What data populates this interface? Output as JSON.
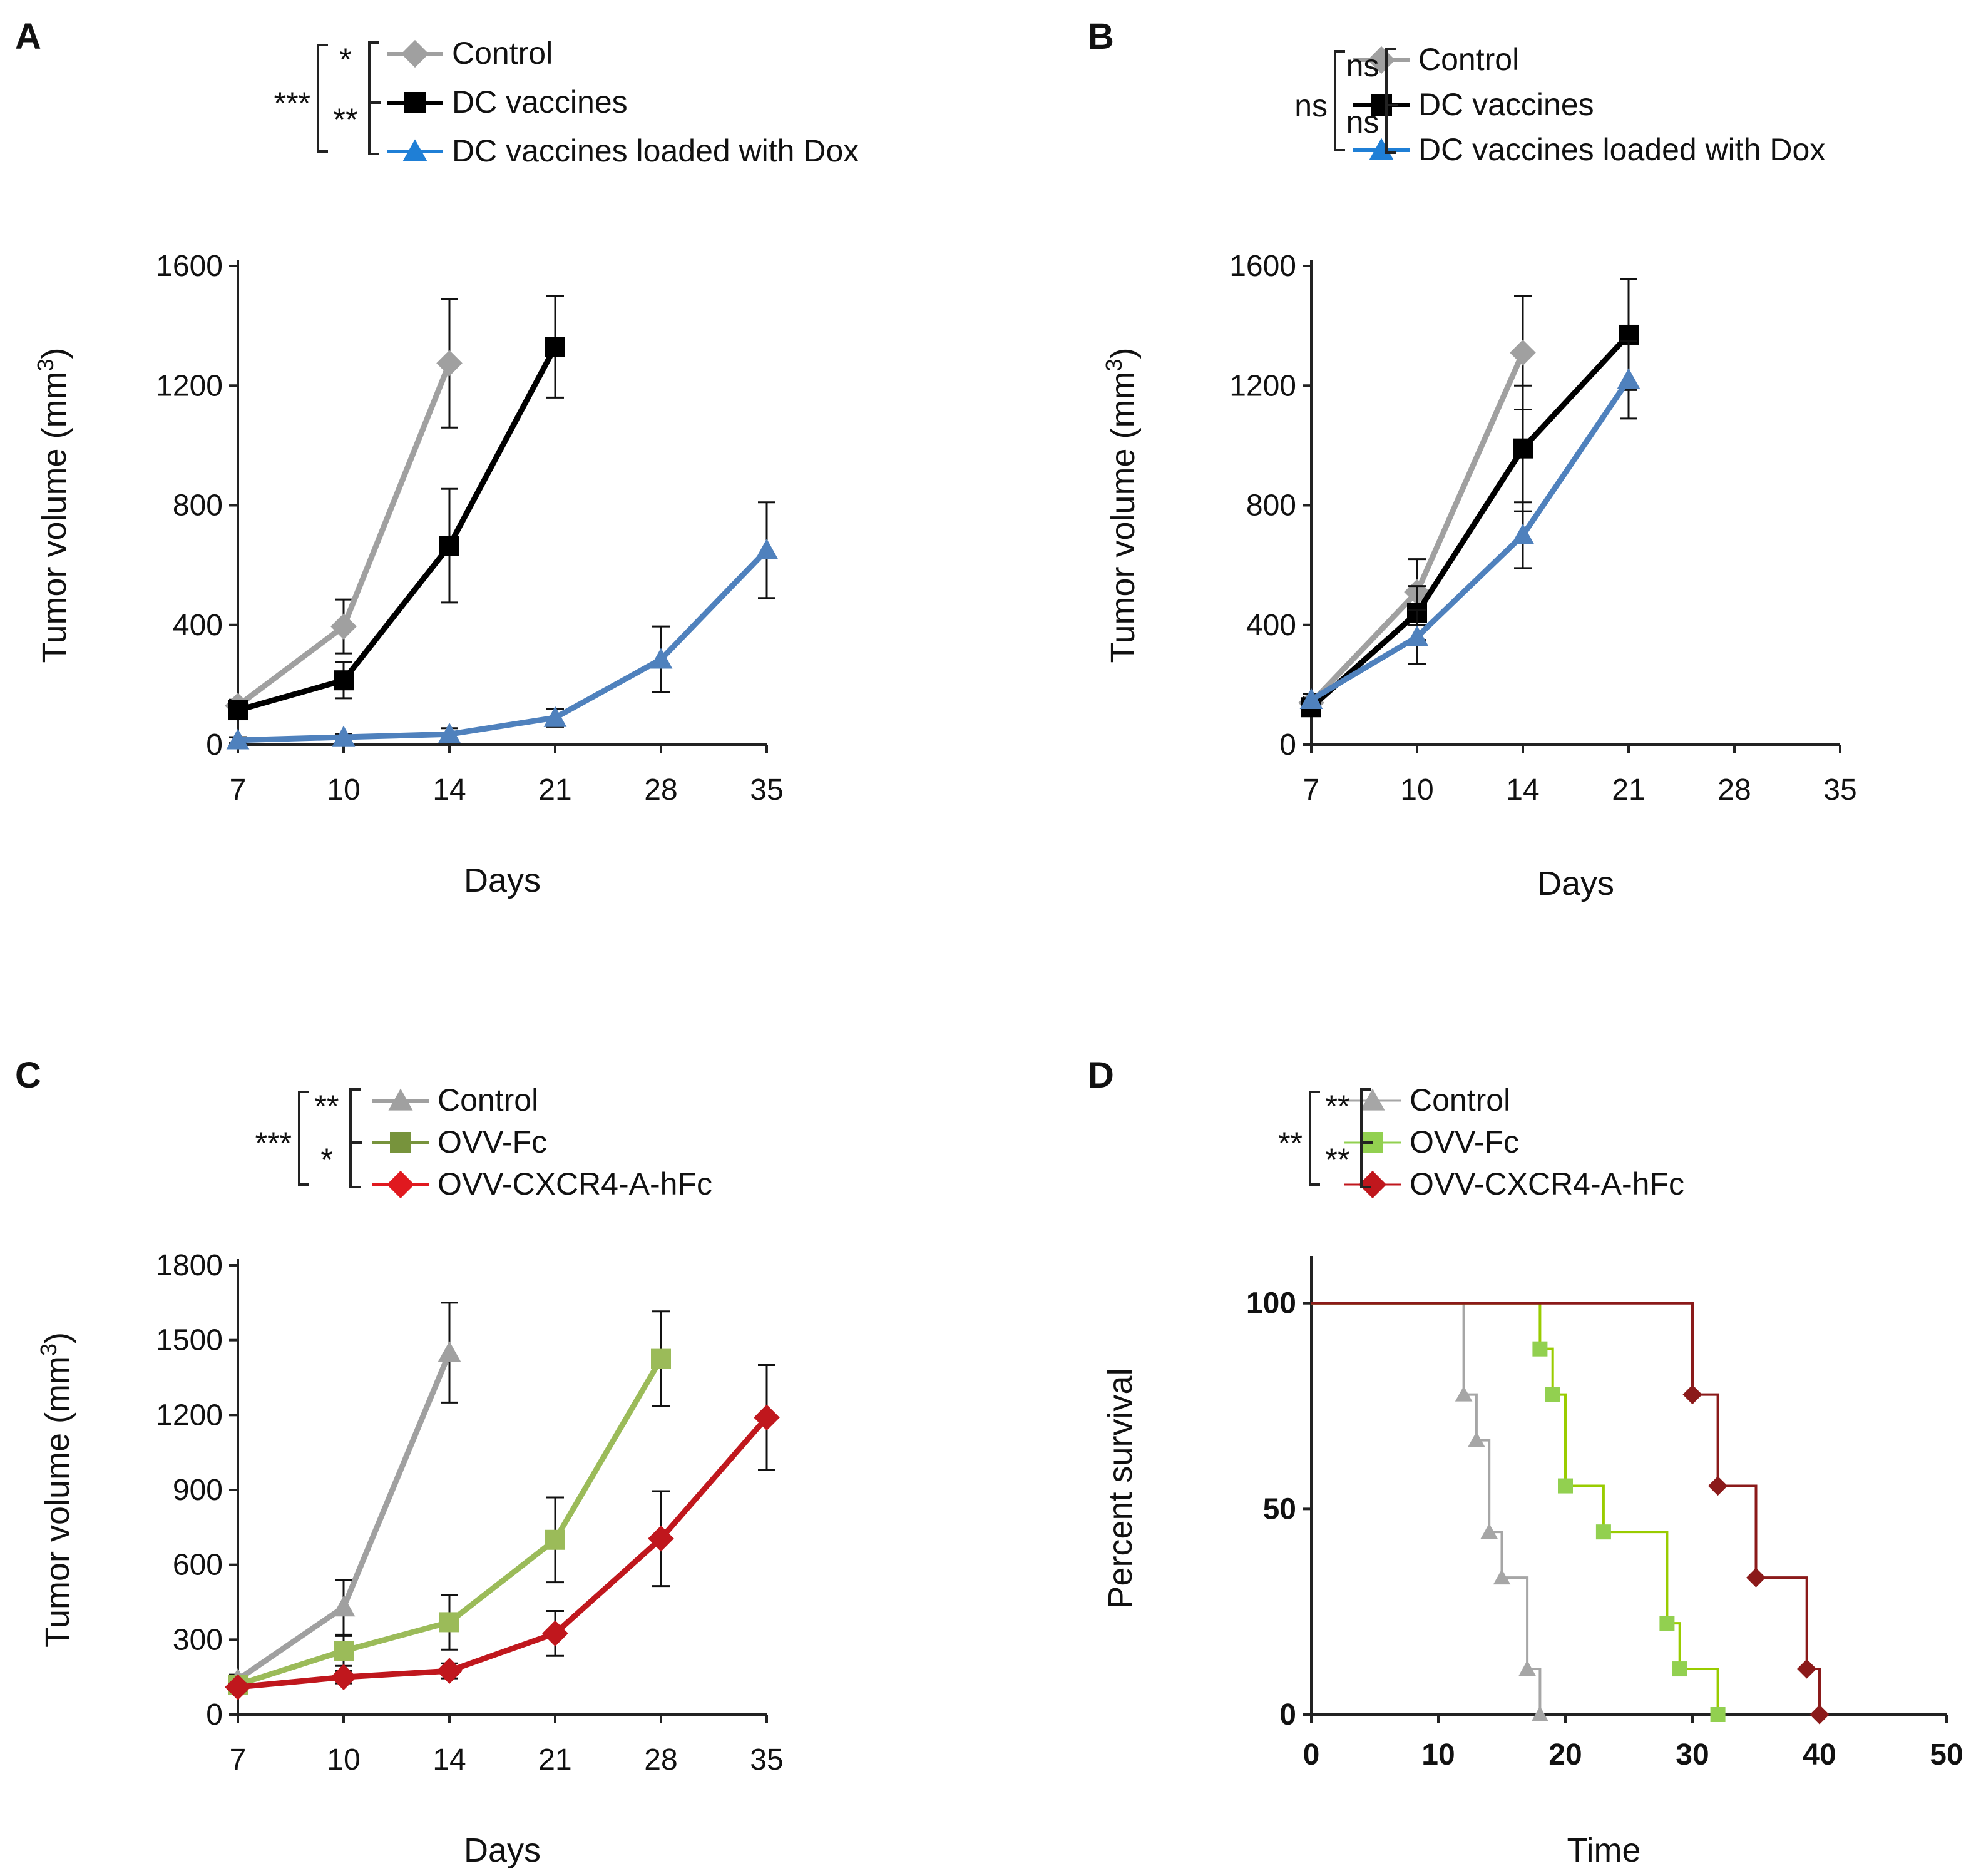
{
  "figure": {
    "panels": [
      "A",
      "B",
      "C",
      "D"
    ]
  },
  "chart_data": [
    {
      "panel": "A",
      "type": "line",
      "xlabel": "Days",
      "ylabel": "Tumor volume (mm3)",
      "ylabel_main": "Tumor volume (mm",
      "ylabel_sup": "3",
      "ylabel_close": ")",
      "categories": [
        "7",
        "10",
        "14",
        "21",
        "28",
        "35"
      ],
      "ylim": [
        0,
        1600
      ],
      "yticks": [
        "0",
        "400",
        "800",
        "1200",
        "1600"
      ],
      "yticks_values": [
        0,
        400,
        800,
        1200,
        1600
      ],
      "series": [
        {
          "name": "Control",
          "marker": "diamond",
          "color": "#a0a0a0",
          "values": [
            130,
            395,
            1275,
            null,
            null,
            null
          ],
          "errors": [
            20,
            90,
            215,
            null,
            null,
            null
          ]
        },
        {
          "name": "DC vaccines",
          "marker": "square",
          "color": "#000000",
          "values": [
            115,
            215,
            665,
            1330,
            null,
            null
          ],
          "errors": [
            20,
            60,
            190,
            170,
            null,
            null
          ]
        },
        {
          "name": "DC vaccines loaded with Dox",
          "marker": "triangle",
          "color": "#4f81bd",
          "legend_color": "#1f7fd6",
          "values": [
            15,
            25,
            35,
            90,
            285,
            650
          ],
          "errors": [
            10,
            10,
            20,
            30,
            110,
            160
          ]
        }
      ],
      "significance": {
        "outer": "***",
        "inner": [
          "*",
          "**"
        ]
      }
    },
    {
      "panel": "B",
      "type": "line",
      "xlabel": "Days",
      "ylabel": "Tumor volume (mm3)",
      "ylabel_main": "Tumor volume (mm",
      "ylabel_sup": "3",
      "ylabel_close": ")",
      "categories": [
        "7",
        "10",
        "14",
        "21",
        "28",
        "35"
      ],
      "ylim": [
        0,
        1600
      ],
      "yticks": [
        "0",
        "400",
        "800",
        "1200",
        "1600"
      ],
      "yticks_values": [
        0,
        400,
        800,
        1200,
        1600
      ],
      "series": [
        {
          "name": "Control",
          "marker": "diamond",
          "color": "#a0a0a0",
          "values": [
            140,
            510,
            1310,
            null,
            null,
            null
          ],
          "errors": [
            20,
            110,
            190,
            null,
            null,
            null
          ]
        },
        {
          "name": "DC vaccines",
          "marker": "square",
          "color": "#000000",
          "values": [
            125,
            440,
            990,
            1370,
            null,
            null
          ],
          "errors": [
            20,
            90,
            210,
            185,
            null,
            null
          ]
        },
        {
          "name": "DC vaccines loaded with Dox",
          "marker": "triangle",
          "color": "#4f81bd",
          "legend_color": "#1f7fd6",
          "values": [
            150,
            360,
            700,
            1220,
            null,
            null
          ],
          "errors": [
            20,
            90,
            110,
            130,
            null,
            null
          ]
        }
      ],
      "significance": {
        "outer": "ns",
        "inner": [
          "ns",
          "ns"
        ]
      }
    },
    {
      "panel": "C",
      "type": "line",
      "xlabel": "Days",
      "ylabel": "Tumor volume (mm3)",
      "ylabel_main": "Tumor volume (mm",
      "ylabel_sup": "3",
      "ylabel_close": ")",
      "categories": [
        "7",
        "10",
        "14",
        "21",
        "28",
        "35"
      ],
      "ylim": [
        0,
        1800
      ],
      "yticks": [
        "0",
        "300",
        "600",
        "900",
        "1200",
        "1500",
        "1800"
      ],
      "yticks_values": [
        0,
        300,
        600,
        900,
        1200,
        1500,
        1800
      ],
      "series": [
        {
          "name": "Control",
          "marker": "triangle",
          "color": "#a0a0a0",
          "values": [
            140,
            430,
            1450,
            null,
            null,
            null
          ],
          "errors": [
            20,
            110,
            200,
            null,
            null,
            null
          ]
        },
        {
          "name": "OVV-Fc",
          "marker": "square",
          "color": "#9bbb59",
          "legend_color": "#77933c",
          "values": [
            120,
            255,
            370,
            700,
            1425,
            null
          ],
          "errors": [
            20,
            60,
            110,
            170,
            190,
            null
          ]
        },
        {
          "name": "OVV-CXCR4-A-hFc",
          "marker": "diamond",
          "color": "#c0171d",
          "legend_color": "#e0191f",
          "values": [
            110,
            150,
            175,
            325,
            705,
            1190
          ],
          "errors": [
            15,
            25,
            30,
            90,
            190,
            210
          ]
        }
      ],
      "significance": {
        "outer": "***",
        "inner": [
          "**",
          "*"
        ]
      }
    },
    {
      "panel": "D",
      "type": "line",
      "subtype": "survival-step",
      "xlabel": "Time",
      "ylabel": "Percent survival",
      "xlim": [
        0,
        50
      ],
      "xticks": [
        "0",
        "10",
        "20",
        "30",
        "40",
        "50"
      ],
      "xticks_values": [
        0,
        10,
        20,
        30,
        40,
        50
      ],
      "ylim": [
        0,
        110
      ],
      "yticks": [
        "0",
        "50",
        "100"
      ],
      "yticks_values": [
        0,
        50,
        100
      ],
      "series": [
        {
          "name": "Control",
          "marker": "triangle",
          "color": "#a6a6a6",
          "steps": [
            [
              0,
              100
            ],
            [
              12,
              100
            ],
            [
              12,
              77.8
            ],
            [
              13,
              77.8
            ],
            [
              13,
              66.7
            ],
            [
              14,
              66.7
            ],
            [
              14,
              44.4
            ],
            [
              15,
              44.4
            ],
            [
              15,
              33.3
            ],
            [
              17,
              33.3
            ],
            [
              17,
              11.1
            ],
            [
              18,
              11.1
            ],
            [
              18,
              0
            ]
          ],
          "points": [
            [
              12,
              77.8
            ],
            [
              13,
              66.7
            ],
            [
              14,
              44.4
            ],
            [
              15,
              33.3
            ],
            [
              17,
              11.1
            ],
            [
              18,
              0
            ]
          ]
        },
        {
          "name": "OVV-Fc",
          "marker": "square",
          "color": "#92d050",
          "legend_color": "#92d050",
          "line_color": "#99cc00",
          "steps": [
            [
              0,
              100
            ],
            [
              18,
              100
            ],
            [
              18,
              88.9
            ],
            [
              19,
              88.9
            ],
            [
              19,
              77.8
            ],
            [
              20,
              77.8
            ],
            [
              20,
              55.6
            ],
            [
              23,
              55.6
            ],
            [
              23,
              44.4
            ],
            [
              28,
              44.4
            ],
            [
              28,
              22.2
            ],
            [
              29,
              22.2
            ],
            [
              29,
              11.1
            ],
            [
              32,
              11.1
            ],
            [
              32,
              0
            ]
          ],
          "points": [
            [
              18,
              88.9
            ],
            [
              19,
              77.8
            ],
            [
              20,
              55.6
            ],
            [
              23,
              44.4
            ],
            [
              28,
              22.2
            ],
            [
              29,
              11.1
            ],
            [
              32,
              0
            ]
          ]
        },
        {
          "name": "OVV-CXCR4-A-hFc",
          "marker": "diamond",
          "color": "#8b1a1a",
          "legend_color": "#c0171d",
          "steps": [
            [
              0,
              100
            ],
            [
              30,
              100
            ],
            [
              30,
              77.8
            ],
            [
              32,
              77.8
            ],
            [
              32,
              55.6
            ],
            [
              35,
              55.6
            ],
            [
              35,
              33.3
            ],
            [
              39,
              33.3
            ],
            [
              39,
              11.1
            ],
            [
              40,
              11.1
            ],
            [
              40,
              0
            ]
          ],
          "points": [
            [
              30,
              77.8
            ],
            [
              32,
              55.6
            ],
            [
              35,
              33.3
            ],
            [
              39,
              11.1
            ],
            [
              40,
              0
            ]
          ]
        }
      ],
      "significance": {
        "outer": "**",
        "inner": [
          "**",
          "**"
        ]
      }
    }
  ]
}
